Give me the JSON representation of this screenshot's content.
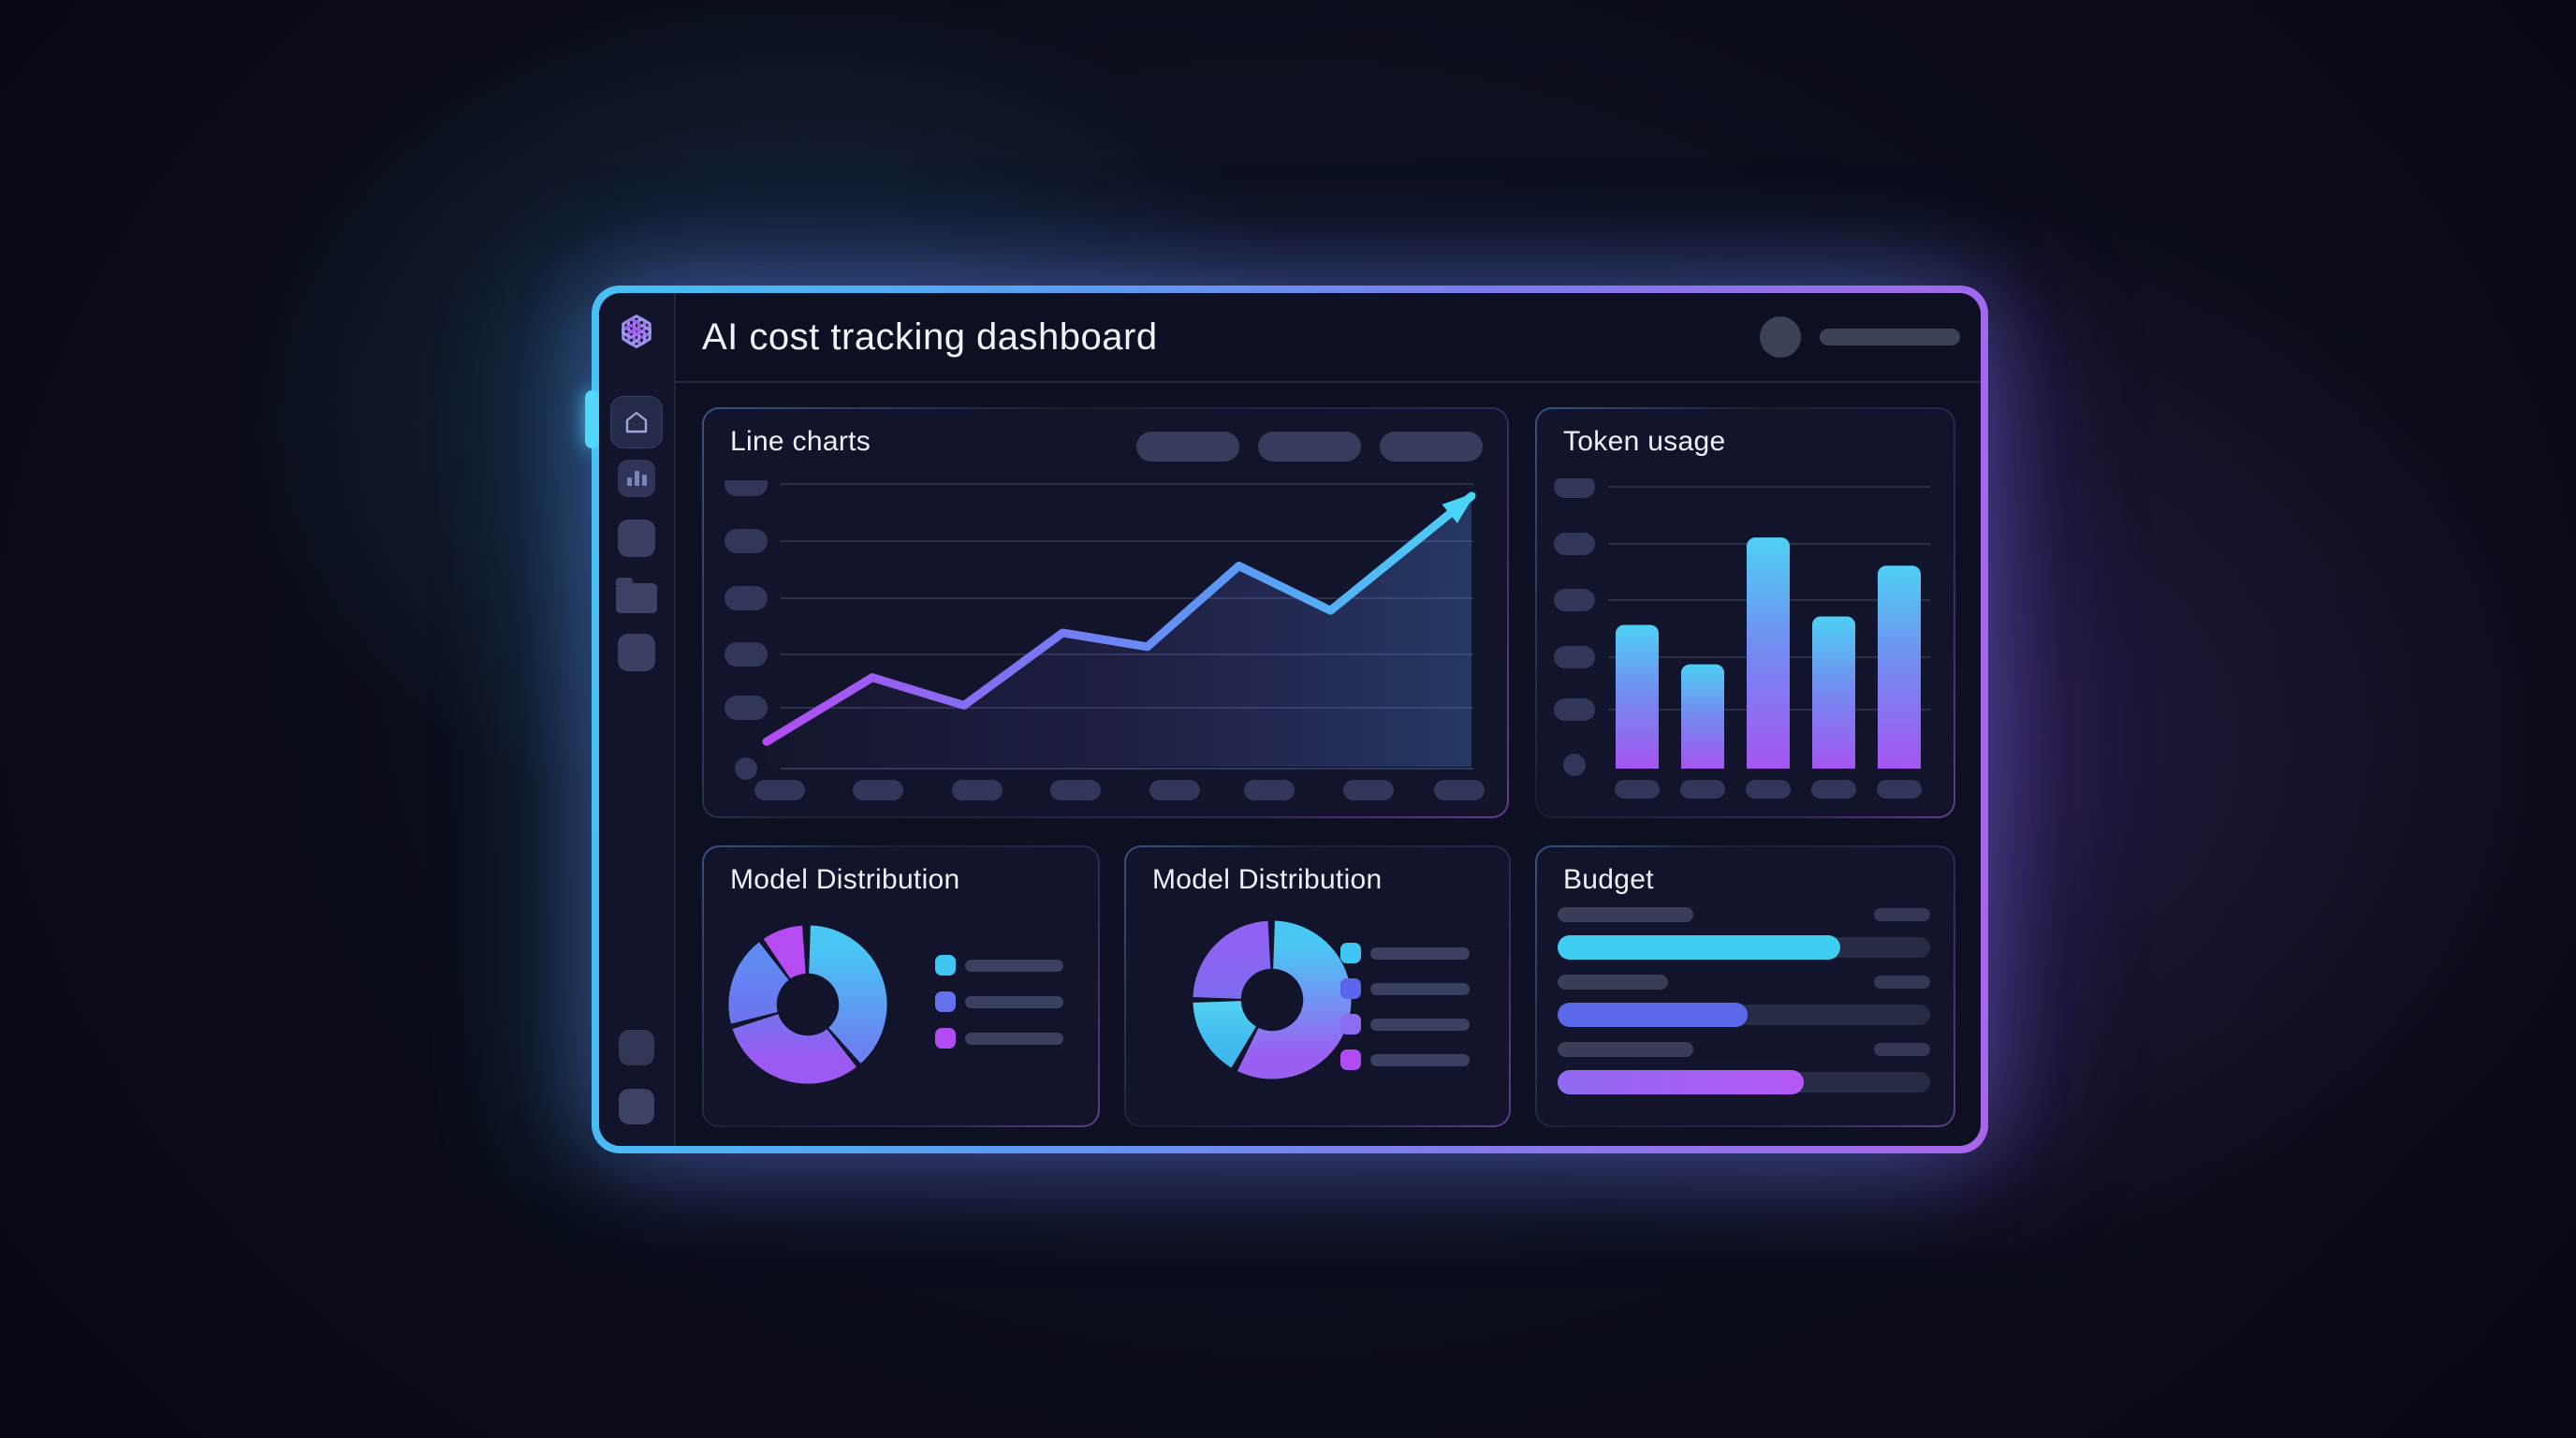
{
  "header": {
    "title": "AI cost tracking dashboard",
    "controls": {
      "avatar": "user-avatar",
      "menu_pill": "menu-placeholder"
    }
  },
  "sidebar": {
    "logo": "openai-logo",
    "items": [
      {
        "name": "home",
        "active": true
      },
      {
        "name": "analytics",
        "active": false
      },
      {
        "name": "item-3",
        "active": false
      },
      {
        "name": "files",
        "active": false
      },
      {
        "name": "item-5",
        "active": false
      },
      {
        "name": "item-6",
        "active": false
      },
      {
        "name": "item-7",
        "active": false
      }
    ]
  },
  "colors": {
    "accent_cyan": "#49d2f5",
    "accent_blue": "#5b9af5",
    "accent_indigo": "#6e7cf2",
    "accent_purple": "#a556f2",
    "accent_magenta": "#b44cf2",
    "window_border_left": "#45c2f5",
    "window_border_right": "#a765ea",
    "panel_bg": "#11142a",
    "placeholder_grey": "#3a3e58"
  },
  "panels": {
    "line_chart": {
      "title": "Line charts",
      "toolbar_pill_count": 3,
      "chart_data": {
        "type": "line",
        "x": [
          0,
          0.15,
          0.28,
          0.42,
          0.54,
          0.67,
          0.8,
          1.0
        ],
        "y": [
          9,
          32,
          22,
          48,
          43,
          72,
          56,
          97
        ],
        "ylim": [
          0,
          100
        ],
        "grid": true,
        "y_ticks": 6,
        "x_ticks": 8,
        "arrow_end": true,
        "line_gradient": [
          "#b44cf2",
          "#7e72f2",
          "#5b9af5",
          "#49d2f5"
        ],
        "area_fill": [
          "rgba(130,110,240,0.02)",
          "rgba(120,110,235,0.12)",
          "rgba(80,140,235,0.30)"
        ]
      }
    },
    "token_usage": {
      "title": "Token usage",
      "chart_data": {
        "type": "bar",
        "values": [
          51,
          37,
          82,
          54,
          72
        ],
        "ylim": [
          0,
          100
        ],
        "y_ticks": 5,
        "x_ticks": 5,
        "bar_gradient": [
          "#4fd0f4",
          "#7489f0",
          "#a556f2"
        ]
      }
    },
    "model_distribution_1": {
      "title": "Model Distribution",
      "chart_data": {
        "type": "donut",
        "segments": [
          {
            "pct": 38,
            "start": 2,
            "end": 138,
            "from": "#49c6f4",
            "to": "#6b82f2"
          },
          {
            "pct": 31,
            "start": 142,
            "end": 252,
            "from": "#7a70f0",
            "to": "#9c5af2"
          },
          {
            "pct": 18,
            "start": 256,
            "end": 322,
            "from": "#5f8af2",
            "to": "#6e74f0"
          },
          {
            "pct": 8,
            "start": 326,
            "end": 356,
            "from": "#b44cf2",
            "to": "#b44cf2"
          }
        ]
      },
      "legend": {
        "swatches": [
          "#3fc6f2",
          "#6671ee",
          "#b14cf2"
        ]
      }
    },
    "model_distribution_2": {
      "title": "Model Distribution",
      "chart_data": {
        "type": "donut",
        "segments": [
          {
            "pct": 57,
            "start": 2,
            "end": 206,
            "from": "#4ac8f4",
            "to": "#9a60f2"
          },
          {
            "pct": 16,
            "start": 211,
            "end": 268,
            "from": "#52d2f4",
            "to": "#40b8ee"
          },
          {
            "pct": 24,
            "start": 272,
            "end": 357,
            "from": "#8f62f2",
            "to": "#7e6cf0"
          }
        ]
      },
      "legend": {
        "swatches": [
          "#3fc6f2",
          "#5b66ec",
          "#8b6cf2",
          "#b14cf2"
        ]
      }
    },
    "budget": {
      "title": "Budget",
      "chart_data": {
        "type": "bar",
        "orientation": "horizontal",
        "rows": [
          {
            "label_w": 145,
            "fill_pct": 76,
            "from": "#3ecdf0",
            "to": "#3ecdf0"
          },
          {
            "label_w": 118,
            "fill_pct": 51,
            "from": "#5b68ea",
            "to": "#5b68ea"
          },
          {
            "label_w": 145,
            "fill_pct": 66,
            "from": "#8f6af0",
            "to": "#b557f5"
          }
        ]
      }
    }
  }
}
